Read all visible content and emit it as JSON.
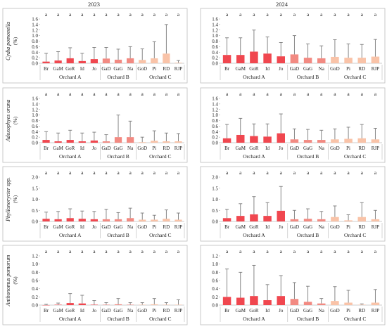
{
  "years": [
    "2023",
    "2024"
  ],
  "colors": {
    "Orchard A": "#f0474f",
    "Orchard B": "#f28a82",
    "Orchard C": "#f9c3a8",
    "error_bar": "#7a7a7a",
    "frame": "#bcbcbc"
  },
  "chart_data": [
    {
      "type": "bar",
      "year": "2023",
      "ylabel": "Cydia pomonella",
      "unit": "(%)",
      "categories": [
        "Br",
        "GaM",
        "GoR",
        "Id",
        "Jo",
        "GaD",
        "GaG",
        "Na",
        "GoD",
        "Pi",
        "RD",
        "RJP"
      ],
      "groups": [
        {
          "name": "Orchard A",
          "categories": [
            "Br",
            "GaM",
            "GoR",
            "Id",
            "Jo"
          ]
        },
        {
          "name": "Orchard B",
          "categories": [
            "GaD",
            "GaG",
            "Na"
          ]
        },
        {
          "name": "Orchard C",
          "categories": [
            "GoD",
            "Pi",
            "RD",
            "RJP"
          ]
        }
      ],
      "values": [
        0.06,
        0.1,
        0.18,
        0.08,
        0.15,
        0.17,
        0.13,
        0.18,
        0.12,
        0.18,
        0.35,
        0.02
      ],
      "error": [
        0.3,
        0.32,
        0.38,
        0.28,
        0.42,
        0.4,
        0.38,
        0.42,
        0.4,
        0.6,
        1.05,
        0.08
      ],
      "significance": [
        "a",
        "a",
        "a",
        "a",
        "a",
        "a",
        "a",
        "a",
        "a",
        "a",
        "a",
        "a"
      ],
      "yticks": [
        "0.0",
        "0.2",
        "0.4",
        "0.6",
        "0.8",
        "1.0",
        "1.2",
        "1.4",
        "1.6"
      ],
      "ylim": [
        0,
        1.6
      ]
    },
    {
      "type": "bar",
      "year": "2024",
      "ylabel": "Cydia pomonella",
      "unit": "(%)",
      "categories": [
        "Br",
        "GaM",
        "GoR",
        "Id",
        "Jo",
        "GaD",
        "GaG",
        "Na",
        "GoD",
        "Pi",
        "RD",
        "RJP"
      ],
      "groups": [
        {
          "name": "Orchard A",
          "categories": [
            "Br",
            "GaM",
            "GoR",
            "Id",
            "Jo"
          ]
        },
        {
          "name": "Orchard B",
          "categories": [
            "GaD",
            "GaG",
            "Na"
          ]
        },
        {
          "name": "Orchard C",
          "categories": [
            "GoD",
            "Pi",
            "RD",
            "RJP"
          ]
        }
      ],
      "values": [
        0.3,
        0.3,
        0.42,
        0.35,
        0.25,
        0.32,
        0.2,
        0.18,
        0.23,
        0.2,
        0.2,
        0.24
      ],
      "error": [
        0.62,
        0.62,
        0.78,
        0.6,
        0.5,
        0.68,
        0.5,
        0.45,
        0.62,
        0.5,
        0.48,
        0.62
      ],
      "significance": [
        "a",
        "a",
        "a",
        "a",
        "a",
        "a",
        "a",
        "a",
        "a",
        "a",
        "a",
        "a"
      ],
      "yticks": [
        "0.0",
        "0.2",
        "0.4",
        "0.6",
        "0.8",
        "1.0",
        "1.2",
        "1.4",
        "1.6"
      ],
      "ylim": [
        0,
        1.6
      ]
    },
    {
      "type": "bar",
      "year": "2023",
      "ylabel": "Adoxophyes orana",
      "unit": "(%)",
      "categories": [
        "Br",
        "GaM",
        "GoR",
        "Id",
        "Jo",
        "GaD",
        "GaG",
        "Na",
        "GoD",
        "Pi",
        "RD",
        "RJP"
      ],
      "groups": [
        {
          "name": "Orchard A",
          "categories": [
            "Br",
            "GaM",
            "GoR",
            "Id",
            "Jo"
          ]
        },
        {
          "name": "Orchard B",
          "categories": [
            "GaD",
            "GaG",
            "Na"
          ]
        },
        {
          "name": "Orchard C",
          "categories": [
            "GoD",
            "Pi",
            "RD",
            "RJP"
          ]
        }
      ],
      "values": [
        0.1,
        0.05,
        0.1,
        0.05,
        0.08,
        0.05,
        0.2,
        0.2,
        0.02,
        0.07,
        0.05,
        0.05
      ],
      "error": [
        0.3,
        0.3,
        0.35,
        0.3,
        0.3,
        0.24,
        0.8,
        0.58,
        0.18,
        0.36,
        0.3,
        0.28
      ],
      "significance": [
        "a",
        "a",
        "a",
        "a",
        "a",
        "a",
        "a",
        "a",
        "a",
        "a",
        "a",
        "a"
      ],
      "yticks": [
        "0.0",
        "0.2",
        "0.4",
        "0.6",
        "0.8",
        "1.0",
        "1.2",
        "1.4",
        "1.6"
      ],
      "ylim": [
        0,
        1.6
      ]
    },
    {
      "type": "bar",
      "year": "2024",
      "ylabel": "Adoxophyes orana",
      "unit": "(%)",
      "categories": [
        "Br",
        "GaM",
        "GoR",
        "Id",
        "Jo",
        "GaD",
        "GaG",
        "Na",
        "GoD",
        "Pi",
        "RD",
        "RJP"
      ],
      "groups": [
        {
          "name": "Orchard A",
          "categories": [
            "Br",
            "GaM",
            "GoR",
            "Id",
            "Jo"
          ]
        },
        {
          "name": "Orchard B",
          "categories": [
            "GaD",
            "GaG",
            "Na"
          ]
        },
        {
          "name": "Orchard C",
          "categories": [
            "GoD",
            "Pi",
            "RD",
            "RJP"
          ]
        }
      ],
      "values": [
        0.16,
        0.28,
        0.24,
        0.22,
        0.34,
        0.12,
        0.1,
        0.1,
        0.12,
        0.14,
        0.16,
        0.12
      ],
      "error": [
        0.5,
        0.6,
        0.44,
        0.46,
        0.7,
        0.38,
        0.38,
        0.35,
        0.38,
        0.42,
        0.5,
        0.4
      ],
      "significance": [
        "a",
        "a",
        "a",
        "a",
        "a",
        "a",
        "a",
        "a",
        "a",
        "a",
        "a",
        "a"
      ],
      "yticks": [
        "0.0",
        "0.2",
        "0.4",
        "0.6",
        "0.8",
        "1.0",
        "1.2",
        "1.4",
        "1.6"
      ],
      "ylim": [
        0,
        1.6
      ]
    },
    {
      "type": "bar",
      "year": "2023",
      "ylabel": "Phyllonorycter spp.",
      "unit": "(%)",
      "categories": [
        "Br",
        "GaM",
        "GoR",
        "Id",
        "Jo",
        "GaD",
        "GaG",
        "Na",
        "GoD",
        "Pi",
        "RD",
        "RJP"
      ],
      "groups": [
        {
          "name": "Orchard A",
          "categories": [
            "Br",
            "GaM",
            "GoR",
            "Id",
            "Jo"
          ]
        },
        {
          "name": "Orchard B",
          "categories": [
            "GaD",
            "GaG",
            "Na"
          ]
        },
        {
          "name": "Orchard C",
          "categories": [
            "GoD",
            "Pi",
            "RD",
            "RJP"
          ]
        }
      ],
      "values": [
        0.12,
        0.1,
        0.15,
        0.12,
        0.1,
        0.1,
        0.1,
        0.15,
        0.08,
        0.08,
        0.12,
        0.08
      ],
      "error": [
        0.3,
        0.35,
        0.42,
        0.35,
        0.35,
        0.45,
        0.3,
        0.45,
        0.3,
        0.2,
        0.4,
        0.3
      ],
      "significance": [
        "a",
        "a",
        "a",
        "a",
        "a",
        "a",
        "a",
        "a",
        "a",
        "a",
        "a",
        "a"
      ],
      "yticks": [
        "0.0",
        "0.5",
        "1.0",
        "1.5",
        "2.0"
      ],
      "ylim": [
        0,
        2.0
      ]
    },
    {
      "type": "bar",
      "year": "2024",
      "ylabel": "Phyllonorycter spp.",
      "unit": "(%)",
      "categories": [
        "Br",
        "GaM",
        "GoR",
        "Id",
        "Jo",
        "GaD",
        "GaG",
        "Na",
        "GoD",
        "Pi",
        "RD",
        "RJP"
      ],
      "groups": [
        {
          "name": "Orchard A",
          "categories": [
            "Br",
            "GaM",
            "GoR",
            "Id",
            "Jo"
          ]
        },
        {
          "name": "Orchard B",
          "categories": [
            "GaD",
            "GaG",
            "Na"
          ]
        },
        {
          "name": "Orchard C",
          "categories": [
            "GoD",
            "Pi",
            "RD",
            "RJP"
          ]
        }
      ],
      "values": [
        0.15,
        0.25,
        0.32,
        0.25,
        0.48,
        0.1,
        0.12,
        0.1,
        0.2,
        0.05,
        0.2,
        0.1
      ],
      "error": [
        0.4,
        0.55,
        0.8,
        0.6,
        1.1,
        0.4,
        0.45,
        0.35,
        0.5,
        0.25,
        0.65,
        0.4
      ],
      "significance": [
        "a",
        "a",
        "a",
        "a",
        "a",
        "a",
        "a",
        "a",
        "a",
        "a",
        "a",
        "a"
      ],
      "yticks": [
        "0.0",
        "0.5",
        "1.0",
        "1.5",
        "2.0"
      ],
      "ylim": [
        0,
        2.0
      ]
    },
    {
      "type": "bar",
      "year": "2023",
      "ylabel": "Anthonomus pomorum",
      "unit": "(%)",
      "categories": [
        "Br",
        "GaM",
        "GoR",
        "Id",
        "Jo",
        "GaD",
        "GaG",
        "Na",
        "GoD",
        "Pi",
        "RD",
        "RJP"
      ],
      "groups": [
        {
          "name": "Orchard A",
          "categories": [
            "Br",
            "GaM",
            "GoR",
            "Id",
            "Jo"
          ]
        },
        {
          "name": "Orchard B",
          "categories": [
            "GaD",
            "GaG",
            "Na"
          ]
        },
        {
          "name": "Orchard C",
          "categories": [
            "GoD",
            "Pi",
            "RD",
            "RJP"
          ]
        }
      ],
      "values": [
        0,
        0.01,
        0.05,
        0.04,
        0.01,
        0.01,
        0.02,
        0.01,
        0.01,
        0.02,
        0.01,
        0.01
      ],
      "error": [
        0.02,
        0.04,
        0.23,
        0.2,
        0.1,
        0.05,
        0.14,
        0.05,
        0.05,
        0.14,
        0.05,
        0.12
      ],
      "significance": [
        "a",
        "a",
        "a",
        "a",
        "a",
        "a",
        "a",
        "a",
        "a",
        "a",
        "a",
        "a"
      ],
      "yticks": [
        "0.0",
        "0.2",
        "0.4",
        "0.6",
        "0.8",
        "1.0",
        "1.2"
      ],
      "ylim": [
        0,
        1.2
      ]
    },
    {
      "type": "bar",
      "year": "2024",
      "ylabel": "Anthonomus pomorum",
      "unit": "(%)",
      "categories": [
        "Br",
        "GaM",
        "GoR",
        "Id",
        "Jo",
        "GaD",
        "GaG",
        "Na",
        "GoD",
        "Pi",
        "RD",
        "RJP"
      ],
      "groups": [
        {
          "name": "Orchard A",
          "categories": [
            "Br",
            "GaM",
            "GoR",
            "Id",
            "Jo"
          ]
        },
        {
          "name": "Orchard B",
          "categories": [
            "GaD",
            "GaG",
            "Na"
          ]
        },
        {
          "name": "Orchard C",
          "categories": [
            "GoD",
            "Pi",
            "RD",
            "RJP"
          ]
        }
      ],
      "values": [
        0.2,
        0.18,
        0.22,
        0.12,
        0.22,
        0.15,
        0.08,
        0.04,
        0.1,
        0.06,
        0.01,
        0.06
      ],
      "error": [
        0.68,
        0.62,
        0.75,
        0.38,
        0.5,
        0.4,
        0.38,
        0.12,
        0.35,
        0.3,
        0.02,
        0.32
      ],
      "significance": [
        "a",
        "a",
        "a",
        "a",
        "a",
        "a",
        "a",
        "a",
        "a",
        "a",
        "a",
        "a"
      ],
      "yticks": [
        "0.0",
        "0.2",
        "0.4",
        "0.6",
        "0.8",
        "1.0",
        "1.2"
      ],
      "ylim": [
        0,
        1.2
      ]
    }
  ]
}
